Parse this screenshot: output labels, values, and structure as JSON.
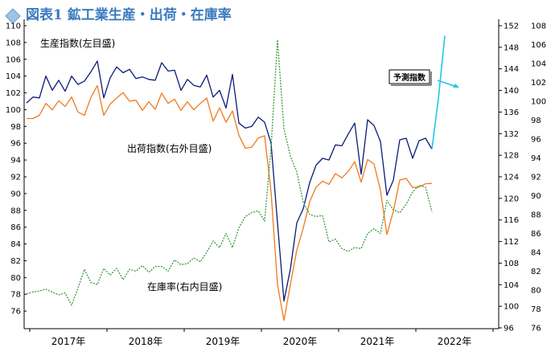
{
  "chart_data": {
    "type": "line",
    "title": "図表1 鉱工業生産・出荷・在庫率",
    "x_labels": [
      "2017年",
      "2018年",
      "2019年",
      "2020年",
      "2021年",
      "2022年"
    ],
    "start_month": "2016-12",
    "left_axis": {
      "min": 74,
      "max": 110,
      "ticks": [
        76,
        78,
        80,
        82,
        84,
        86,
        88,
        90,
        92,
        94,
        96,
        98,
        100,
        102,
        104,
        106,
        108,
        110
      ]
    },
    "right_axis_outer": {
      "min": 96,
      "max": 152,
      "ticks": [
        96,
        100,
        104,
        108,
        112,
        116,
        120,
        124,
        128,
        132,
        136,
        140,
        144,
        148,
        152
      ]
    },
    "right_axis_inner": {
      "min": 76,
      "max": 108,
      "ticks": [
        76,
        78,
        80,
        82,
        84,
        86,
        88,
        90,
        92,
        94,
        96,
        98,
        100,
        102,
        104,
        106,
        108
      ]
    },
    "series": [
      {
        "name": "生産指数(左目盛)",
        "axis": "left",
        "color": "#0b1a7a",
        "values": [
          100.8,
          101.5,
          101.4,
          104.0,
          102.3,
          103.5,
          102.2,
          104.0,
          103.0,
          103.4,
          104.5,
          105.8,
          101.4,
          103.8,
          105.1,
          104.4,
          104.8,
          103.7,
          103.9,
          103.6,
          103.5,
          105.6,
          104.6,
          104.7,
          102.3,
          103.6,
          102.9,
          102.7,
          104.1,
          101.5,
          102.3,
          100.2,
          104.2,
          98.4,
          97.8,
          98.0,
          99.1,
          98.5,
          96.0,
          86.5,
          77.2,
          81.0,
          86.5,
          88.2,
          91.3,
          93.4,
          94.2,
          94.0,
          95.8,
          95.7,
          97.1,
          98.4,
          92.3,
          98.8,
          98.1,
          96.2,
          89.8,
          91.6,
          96.4,
          96.6,
          94.2,
          96.3,
          96.6,
          95.3
        ]
      },
      {
        "name": "出荷指数(右外目盛)",
        "axis": "right_outer",
        "color": "#f07a1e",
        "values": [
          134.8,
          134.8,
          135.4,
          137.6,
          136.4,
          138.1,
          137.0,
          138.8,
          136.0,
          135.4,
          138.7,
          140.9,
          135.4,
          137.5,
          138.6,
          139.6,
          138.0,
          138.2,
          136.3,
          137.9,
          136.5,
          139.5,
          137.6,
          138.4,
          136.3,
          137.9,
          136.4,
          137.6,
          138.6,
          134.3,
          136.8,
          134.1,
          136.2,
          131.7,
          129.3,
          129.5,
          131.2,
          131.6,
          121.2,
          104.0,
          97.4,
          104.0,
          110.4,
          114.5,
          119.4,
          122.1,
          123.2,
          122.6,
          124.6,
          123.8,
          125.0,
          126.8,
          123.0,
          127.2,
          126.4,
          121.5,
          113.3,
          117.6,
          123.4,
          123.7,
          122.0,
          122.1,
          122.7,
          122.8
        ]
      },
      {
        "name": "在庫率(右内目盛)",
        "axis": "right_inner",
        "color": "#3a9a3a",
        "values": [
          79.6,
          79.8,
          79.9,
          80.1,
          79.8,
          79.5,
          79.7,
          78.4,
          80.2,
          82.2,
          80.8,
          80.6,
          82.3,
          81.6,
          82.3,
          81.1,
          82.2,
          82.0,
          82.6,
          81.9,
          82.5,
          82.5,
          82.0,
          83.2,
          82.7,
          82.8,
          83.4,
          83.0,
          84.0,
          85.2,
          84.5,
          86.0,
          84.5,
          86.6,
          87.8,
          88.2,
          88.4,
          87.3,
          95.1,
          106.5,
          97.1,
          94.2,
          92.5,
          89.3,
          88.0,
          87.8,
          87.9,
          85.1,
          85.4,
          84.4,
          84.1,
          84.5,
          84.4,
          86.0,
          86.5,
          86.0,
          89.5,
          88.5,
          88.2,
          89.1,
          90.4,
          91.1,
          90.9,
          88.3
        ]
      },
      {
        "name": "予測指数",
        "axis": "left",
        "color": "#22c6e6",
        "start_index": 63,
        "values": [
          95.3,
          101.3,
          108.8
        ]
      }
    ],
    "annotations": [
      "生産指数(左目盛)",
      "出荷指数(右外目盛)",
      "在庫率(右内目盛)",
      "予測指数"
    ]
  }
}
